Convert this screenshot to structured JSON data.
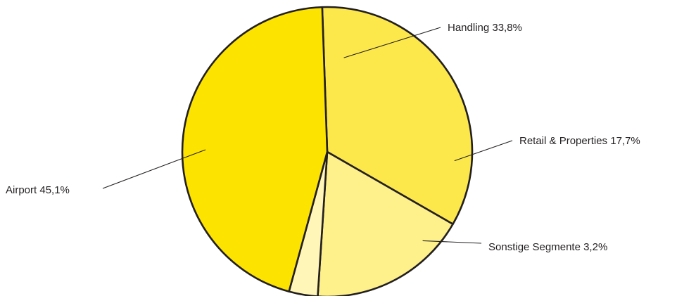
{
  "chart_data": {
    "type": "pie",
    "title": "",
    "slices": [
      {
        "name": "Handling",
        "value": 33.8,
        "label": "Handling 33,8%",
        "color": "#fde84c"
      },
      {
        "name": "Retail & Properties",
        "value": 17.7,
        "label": "Retail & Properties 17,7%",
        "color": "#fef08a"
      },
      {
        "name": "Sonstige Segmente",
        "value": 3.2,
        "label": "Sonstige Segmente 3,2%",
        "color": "#fff6b8"
      },
      {
        "name": "Airport",
        "value": 45.1,
        "label": "Airport 45,1%",
        "color": "#fde300"
      }
    ],
    "legend": "none",
    "outline_color": "#231f20"
  }
}
